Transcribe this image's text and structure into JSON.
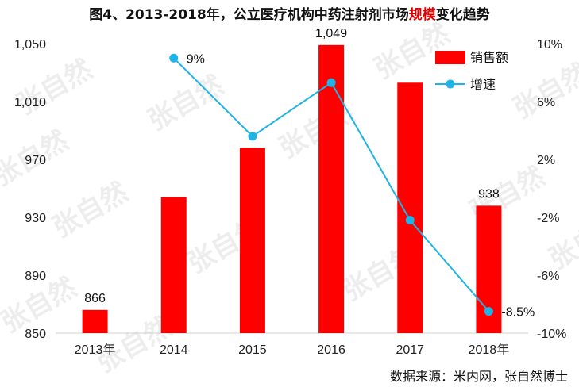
{
  "title": {
    "before": "图4、2013-2018年，公立医疗机构中药注射剂市场",
    "highlight": "规模",
    "after": "变化趋势"
  },
  "source": "数据来源：米内网，张自然博士",
  "watermark": "张自然",
  "colors": {
    "bar": "#ff0000",
    "line": "#1fb4e6"
  },
  "chart_data": {
    "type": "bar",
    "categories": [
      "2013年",
      "2014",
      "2015",
      "2016",
      "2017",
      "2018年"
    ],
    "series": [
      {
        "name": "销售额",
        "type": "bar",
        "axis": "left",
        "values": [
          866,
          944,
          978,
          1049,
          1023,
          938
        ],
        "labels": [
          "866",
          "",
          "",
          "1,049",
          "",
          "938"
        ]
      },
      {
        "name": "增速",
        "type": "line",
        "axis": "right",
        "values": [
          null,
          9,
          3.6,
          7.3,
          -2.2,
          -8.5
        ],
        "labels": [
          "",
          "9%",
          "",
          "",
          "",
          "-8.5%"
        ]
      }
    ],
    "y_left": {
      "range": [
        850,
        1050
      ],
      "ticks": [
        850,
        890,
        930,
        970,
        1010,
        1050
      ],
      "tick_labels": [
        "850",
        "890",
        "930",
        "970",
        "1,010",
        "1,050"
      ]
    },
    "y_right": {
      "range": [
        -10,
        10
      ],
      "ticks": [
        -10,
        -6,
        -2,
        2,
        6,
        10
      ],
      "tick_labels": [
        "-10%",
        "-6%",
        "-2%",
        "2%",
        "6%",
        "10%"
      ]
    },
    "grid": false,
    "legend_position": "top-right"
  }
}
